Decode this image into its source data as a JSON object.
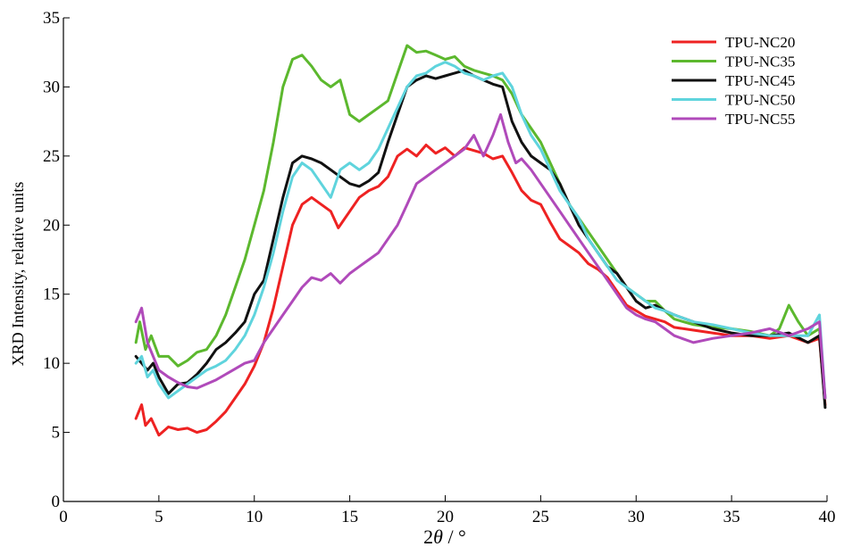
{
  "chart_data": {
    "type": "line",
    "xlabel": "2θ / °",
    "xlabel_parts": {
      "symbol": "2",
      "theta": "θ",
      "unit": " / °"
    },
    "ylabel": "XRD Intensity,  relative units",
    "xlim": [
      0,
      40
    ],
    "ylim": [
      0,
      35
    ],
    "x_ticks": [
      0,
      5,
      10,
      15,
      20,
      25,
      30,
      35,
      40
    ],
    "y_ticks": [
      0,
      5,
      10,
      15,
      20,
      25,
      30,
      35
    ],
    "grid": false,
    "legend_position": "top-right",
    "series": [
      {
        "name": "TPU-NC20",
        "color": "#ee2222",
        "x": [
          3.8,
          4.1,
          4.3,
          4.6,
          5.0,
          5.5,
          6.0,
          6.5,
          7.0,
          7.5,
          8.0,
          8.5,
          9.0,
          9.5,
          10.0,
          10.5,
          11.0,
          11.5,
          12.0,
          12.5,
          13.0,
          13.5,
          14.0,
          14.4,
          15.0,
          15.5,
          16.0,
          16.5,
          17.0,
          17.5,
          18.0,
          18.5,
          19.0,
          19.5,
          20.0,
          20.5,
          21.0,
          21.5,
          22.0,
          22.5,
          23.0,
          23.5,
          24.0,
          24.5,
          25.0,
          25.5,
          26.0,
          26.5,
          27.0,
          27.5,
          28.0,
          28.5,
          29.0,
          29.5,
          30.0,
          30.5,
          31.0,
          31.5,
          32.0,
          33.0,
          34.0,
          35.0,
          36.0,
          37.0,
          38.0,
          39.0,
          39.6,
          39.9
        ],
        "y": [
          6.0,
          7.0,
          5.5,
          6.0,
          4.8,
          5.4,
          5.2,
          5.3,
          5.0,
          5.2,
          5.8,
          6.5,
          7.5,
          8.5,
          9.8,
          11.5,
          14.0,
          17.0,
          20.0,
          21.5,
          22.0,
          21.5,
          21.0,
          19.8,
          21.0,
          22.0,
          22.5,
          22.8,
          23.5,
          25.0,
          25.5,
          25.0,
          25.8,
          25.2,
          25.6,
          25.0,
          25.6,
          25.4,
          25.2,
          24.8,
          25.0,
          23.8,
          22.5,
          21.8,
          21.5,
          20.2,
          19.0,
          18.5,
          18.0,
          17.2,
          16.8,
          16.2,
          15.2,
          14.2,
          13.8,
          13.4,
          13.2,
          13.0,
          12.6,
          12.4,
          12.2,
          12.0,
          12.0,
          11.8,
          12.0,
          11.5,
          11.8,
          7.0
        ]
      },
      {
        "name": "TPU-NC35",
        "color": "#5cb82e",
        "x": [
          3.8,
          4.0,
          4.3,
          4.6,
          5.0,
          5.5,
          6.0,
          6.5,
          7.0,
          7.5,
          8.0,
          8.5,
          9.0,
          9.5,
          10.0,
          10.5,
          11.0,
          11.5,
          12.0,
          12.5,
          13.0,
          13.5,
          14.0,
          14.5,
          15.0,
          15.5,
          16.0,
          16.5,
          17.0,
          17.5,
          18.0,
          18.5,
          19.0,
          19.5,
          20.0,
          20.5,
          21.0,
          21.5,
          22.0,
          22.5,
          23.0,
          23.5,
          24.0,
          24.5,
          25.0,
          25.5,
          26.0,
          26.5,
          27.0,
          27.5,
          28.0,
          28.5,
          29.0,
          29.5,
          30.0,
          30.5,
          31.0,
          31.5,
          32.0,
          33.0,
          34.0,
          35.0,
          36.0,
          37.0,
          37.5,
          38.0,
          38.5,
          39.0,
          39.6,
          39.9
        ],
        "y": [
          11.5,
          13.0,
          11.0,
          12.0,
          10.5,
          10.5,
          9.8,
          10.2,
          10.8,
          11.0,
          12.0,
          13.5,
          15.5,
          17.5,
          20.0,
          22.5,
          26.0,
          30.0,
          32.0,
          32.3,
          31.5,
          30.5,
          30.0,
          30.5,
          28.0,
          27.5,
          28.0,
          28.5,
          29.0,
          31.0,
          33.0,
          32.5,
          32.6,
          32.3,
          32.0,
          32.2,
          31.5,
          31.2,
          31.0,
          30.8,
          30.5,
          29.5,
          28.0,
          27.0,
          26.0,
          24.5,
          23.0,
          21.5,
          20.5,
          19.5,
          18.5,
          17.5,
          16.5,
          15.5,
          15.0,
          14.5,
          14.5,
          13.8,
          13.2,
          12.8,
          12.6,
          12.5,
          12.3,
          12.0,
          12.5,
          14.2,
          13.0,
          12.0,
          12.5,
          7.5
        ]
      },
      {
        "name": "TPU-NC45",
        "color": "#111111",
        "x": [
          3.8,
          4.1,
          4.4,
          4.7,
          5.0,
          5.5,
          6.0,
          6.5,
          7.0,
          7.5,
          8.0,
          8.5,
          9.0,
          9.5,
          10.0,
          10.5,
          11.0,
          11.5,
          12.0,
          12.5,
          13.0,
          13.5,
          14.0,
          14.5,
          15.0,
          15.5,
          16.0,
          16.5,
          17.0,
          17.5,
          18.0,
          18.5,
          19.0,
          19.5,
          20.0,
          20.5,
          21.0,
          21.5,
          22.0,
          22.5,
          23.0,
          23.5,
          24.0,
          24.5,
          25.0,
          25.5,
          26.0,
          26.5,
          27.0,
          27.5,
          28.0,
          28.5,
          29.0,
          29.5,
          30.0,
          30.5,
          31.0,
          31.5,
          32.0,
          33.0,
          34.0,
          35.0,
          36.0,
          37.0,
          38.0,
          39.0,
          39.6,
          39.9
        ],
        "y": [
          10.5,
          10.0,
          9.5,
          10.0,
          9.0,
          7.8,
          8.5,
          8.6,
          9.2,
          10.0,
          11.0,
          11.5,
          12.2,
          13.0,
          15.0,
          16.0,
          19.0,
          22.0,
          24.5,
          25.0,
          24.8,
          24.5,
          24.0,
          23.5,
          23.0,
          22.8,
          23.2,
          23.8,
          26.0,
          28.0,
          30.0,
          30.5,
          30.8,
          30.6,
          30.8,
          31.0,
          31.2,
          30.8,
          30.5,
          30.2,
          30.0,
          27.5,
          26.0,
          25.0,
          24.5,
          24.0,
          23.0,
          21.5,
          20.0,
          19.0,
          18.0,
          17.0,
          16.5,
          15.5,
          14.5,
          14.0,
          14.2,
          13.8,
          13.5,
          13.0,
          12.5,
          12.2,
          12.0,
          12.0,
          12.2,
          11.5,
          12.0,
          6.8
        ]
      },
      {
        "name": "TPU-NC50",
        "color": "#5fd4dd",
        "x": [
          3.8,
          4.1,
          4.4,
          4.7,
          5.0,
          5.5,
          6.0,
          6.5,
          7.0,
          7.5,
          8.0,
          8.5,
          9.0,
          9.5,
          10.0,
          10.5,
          11.0,
          11.5,
          12.0,
          12.5,
          13.0,
          13.5,
          14.0,
          14.5,
          15.0,
          15.5,
          16.0,
          16.5,
          17.0,
          17.5,
          18.0,
          18.5,
          19.0,
          19.5,
          20.0,
          20.5,
          21.0,
          21.5,
          22.0,
          22.5,
          23.0,
          23.5,
          24.0,
          24.5,
          25.0,
          25.5,
          26.0,
          26.5,
          27.0,
          27.5,
          28.0,
          28.5,
          29.0,
          29.5,
          30.0,
          30.5,
          31.0,
          31.5,
          32.0,
          33.0,
          34.0,
          35.0,
          36.0,
          37.0,
          38.0,
          39.0,
          39.6,
          39.9
        ],
        "y": [
          10.0,
          10.5,
          9.0,
          9.5,
          8.5,
          7.5,
          8.0,
          8.5,
          9.0,
          9.5,
          9.8,
          10.2,
          11.0,
          12.0,
          13.5,
          15.5,
          18.0,
          21.0,
          23.5,
          24.5,
          24.0,
          23.0,
          22.0,
          24.0,
          24.5,
          24.0,
          24.5,
          25.5,
          27.0,
          28.5,
          30.0,
          30.8,
          31.0,
          31.5,
          31.8,
          31.5,
          31.0,
          30.8,
          30.5,
          30.8,
          31.0,
          30.0,
          28.0,
          26.5,
          25.5,
          24.0,
          22.5,
          21.5,
          20.5,
          19.0,
          18.0,
          17.0,
          16.0,
          15.5,
          15.0,
          14.5,
          14.0,
          13.8,
          13.5,
          13.0,
          12.8,
          12.5,
          12.2,
          12.0,
          12.0,
          12.0,
          13.5,
          7.5
        ]
      },
      {
        "name": "TPU-NC55",
        "color": "#b04aba",
        "x": [
          3.8,
          4.1,
          4.4,
          4.7,
          5.0,
          5.5,
          6.0,
          6.5,
          7.0,
          7.5,
          8.0,
          8.5,
          9.0,
          9.5,
          10.0,
          10.5,
          11.0,
          11.5,
          12.0,
          12.5,
          13.0,
          13.5,
          14.0,
          14.5,
          15.0,
          15.5,
          16.0,
          16.5,
          17.0,
          17.5,
          18.0,
          18.5,
          19.0,
          19.5,
          20.0,
          20.5,
          21.0,
          21.5,
          22.0,
          22.5,
          22.9,
          23.3,
          23.7,
          24.0,
          24.5,
          25.0,
          25.5,
          26.0,
          26.5,
          27.0,
          27.5,
          28.0,
          28.5,
          29.0,
          29.5,
          30.0,
          30.5,
          31.0,
          31.5,
          32.0,
          33.0,
          34.0,
          35.0,
          36.0,
          37.0,
          38.0,
          39.0,
          39.6,
          39.9
        ],
        "y": [
          13.0,
          14.0,
          11.5,
          10.5,
          9.5,
          9.0,
          8.6,
          8.3,
          8.2,
          8.5,
          8.8,
          9.2,
          9.6,
          10.0,
          10.2,
          11.5,
          12.5,
          13.5,
          14.5,
          15.5,
          16.2,
          16.0,
          16.5,
          15.8,
          16.5,
          17.0,
          17.5,
          18.0,
          19.0,
          20.0,
          21.5,
          23.0,
          23.5,
          24.0,
          24.5,
          25.0,
          25.5,
          26.5,
          25.0,
          26.5,
          28.0,
          26.0,
          24.5,
          24.8,
          24.0,
          23.0,
          22.0,
          21.0,
          20.0,
          19.0,
          18.0,
          17.0,
          16.0,
          15.0,
          14.0,
          13.5,
          13.2,
          13.0,
          12.5,
          12.0,
          11.5,
          11.8,
          12.0,
          12.2,
          12.5,
          12.0,
          12.5,
          13.0,
          7.5
        ]
      }
    ]
  }
}
